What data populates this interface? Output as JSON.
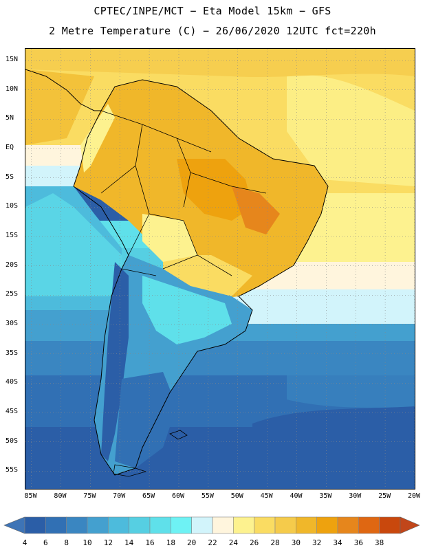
{
  "header": {
    "line1": "CPTEC/INPE/MCT  −   Eta Model 15km  −  GFS",
    "line2": "2 Metre Temperature (C) − 26/06/2020 12UTC fct=220h"
  },
  "map": {
    "lon_range": [
      -86,
      -20
    ],
    "lat_range": [
      -58,
      17
    ],
    "lat_labels": [
      "15N",
      "10N",
      "5N",
      "EQ",
      "5S",
      "10S",
      "15S",
      "20S",
      "25S",
      "30S",
      "35S",
      "40S",
      "45S",
      "50S",
      "55S"
    ],
    "lat_values": [
      15,
      10,
      5,
      0,
      -5,
      -10,
      -15,
      -20,
      -25,
      -30,
      -35,
      -40,
      -45,
      -50,
      -55
    ],
    "lon_labels": [
      "85W",
      "80W",
      "75W",
      "70W",
      "65W",
      "60W",
      "55W",
      "50W",
      "45W",
      "40W",
      "35W",
      "30W",
      "25W",
      "20W"
    ],
    "lon_values": [
      -85,
      -80,
      -75,
      -70,
      -65,
      -60,
      -55,
      -50,
      -45,
      -40,
      -35,
      -30,
      -25,
      -20
    ]
  },
  "colorbar": {
    "labels": [
      "4",
      "6",
      "8",
      "10",
      "12",
      "14",
      "16",
      "18",
      "20",
      "22",
      "24",
      "26",
      "28",
      "30",
      "32",
      "34",
      "36",
      "38"
    ],
    "colors": [
      "#2b5ea7",
      "#3170b4",
      "#3a86c1",
      "#44a0cf",
      "#4dbbdc",
      "#56cfe2",
      "#5fe0ea",
      "#6ef2f4",
      "#d2f4fb",
      "#fff5dd",
      "#fdf28f",
      "#fadc62",
      "#f5cb4b",
      "#f0b72a",
      "#eea20e",
      "#e6861c",
      "#df6712",
      "#c9480d"
    ],
    "low_color": "#3e74b6",
    "high_color": "#c1461a"
  }
}
